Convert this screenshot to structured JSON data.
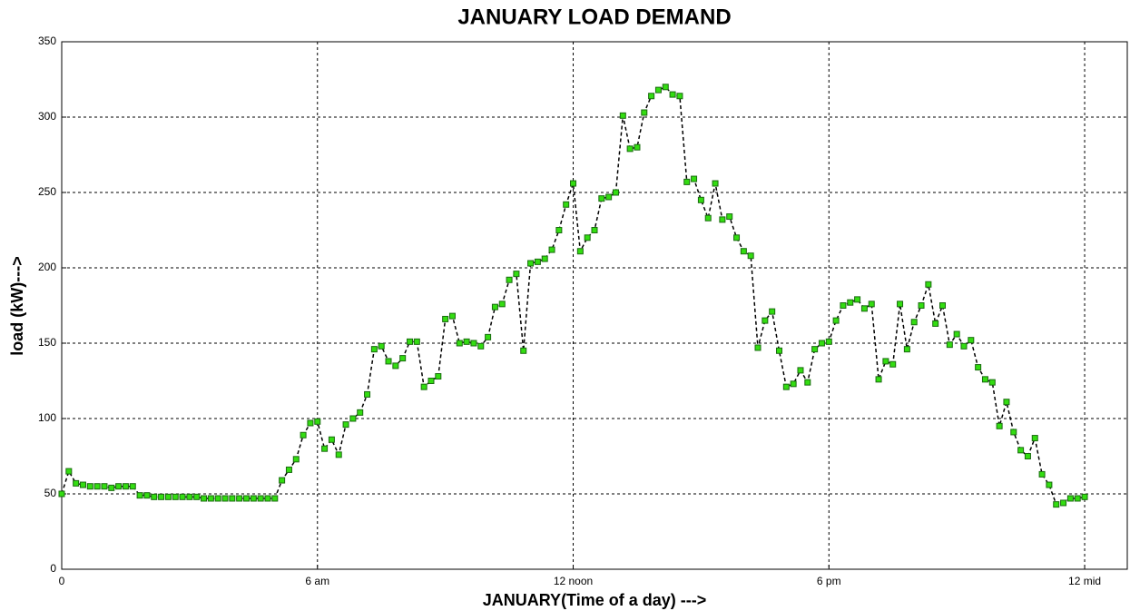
{
  "chart_data": {
    "type": "line",
    "title": "JANUARY LOAD DEMAND",
    "xlabel": "JANUARY(Time of a day) --->",
    "ylabel": "load (kW)--->",
    "x": [
      0,
      10,
      20,
      30,
      40,
      50,
      60,
      70,
      80,
      90,
      100,
      110,
      120,
      130,
      140,
      150,
      160,
      170,
      180,
      190,
      200,
      210,
      220,
      230,
      240,
      250,
      260,
      270,
      280,
      290,
      300,
      310,
      320,
      330,
      340,
      350,
      360,
      370,
      380,
      390,
      400,
      410,
      420,
      430,
      440,
      450,
      460,
      470,
      480,
      490,
      500,
      510,
      520,
      530,
      540,
      550,
      560,
      570,
      580,
      590,
      600,
      610,
      620,
      630,
      640,
      650,
      660,
      670,
      680,
      690,
      700,
      710,
      720,
      730,
      740,
      750,
      760,
      770,
      780,
      790,
      800,
      810,
      820,
      830,
      840,
      850,
      860,
      870,
      880,
      890,
      900,
      910,
      920,
      930,
      940,
      950,
      960,
      970,
      980,
      990,
      1000,
      1010,
      1020,
      1030,
      1040,
      1050,
      1060,
      1070,
      1080,
      1090,
      1100,
      1110,
      1120,
      1130,
      1140,
      1150,
      1160,
      1170,
      1180,
      1190,
      1200,
      1210,
      1220,
      1230,
      1240,
      1250,
      1260,
      1270,
      1280,
      1290,
      1300,
      1310,
      1320,
      1330,
      1340,
      1350,
      1360,
      1370,
      1380,
      1390,
      1400,
      1410,
      1420,
      1430,
      1440
    ],
    "series": [
      {
        "name": "load",
        "color": "#000000",
        "marker_color": "#33dd11",
        "values": [
          50,
          65,
          57,
          56,
          55,
          55,
          55,
          54,
          55,
          55,
          55,
          49,
          49,
          48,
          48,
          48,
          48,
          48,
          48,
          48,
          47,
          47,
          47,
          47,
          47,
          47,
          47,
          47,
          47,
          47,
          47,
          59,
          66,
          73,
          89,
          97,
          98,
          80,
          86,
          76,
          96,
          100,
          104,
          116,
          146,
          148,
          138,
          135,
          140,
          151,
          151,
          121,
          125,
          128,
          166,
          168,
          150,
          151,
          150,
          148,
          154,
          174,
          176,
          192,
          196,
          145,
          203,
          204,
          206,
          212,
          225,
          242,
          256,
          211,
          220,
          225,
          246,
          247,
          250,
          301,
          279,
          280,
          303,
          314,
          318,
          320,
          315,
          314,
          257,
          259,
          245,
          233,
          256,
          232,
          234,
          220,
          211,
          208,
          147,
          165,
          171,
          145,
          121,
          123,
          132,
          124,
          146,
          150,
          151,
          165,
          175,
          177,
          179,
          173,
          176,
          126,
          138,
          136,
          176,
          146,
          164,
          175,
          189,
          163,
          175,
          149,
          156,
          148,
          152,
          134,
          126,
          124,
          95,
          111,
          91,
          79,
          75,
          87,
          63,
          56,
          43,
          44,
          47,
          47,
          48
        ]
      }
    ],
    "xlim": [
      0,
      1500
    ],
    "xticks": [
      0,
      {
        "value": 360,
        "label": "6 am"
      },
      {
        "value": 720,
        "label": "12 noon"
      },
      {
        "value": 1080,
        "label": "6 pm"
      },
      {
        "value": 1440,
        "label": "12 mid"
      }
    ],
    "ylim": [
      0,
      350
    ],
    "yticks": [
      0,
      50,
      100,
      150,
      200,
      250,
      300,
      350
    ],
    "grid": true
  }
}
